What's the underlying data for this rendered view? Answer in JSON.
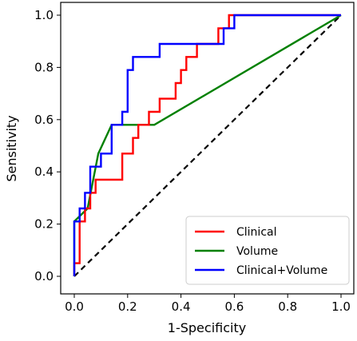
{
  "chart_data": {
    "type": "line",
    "title": "",
    "xlabel": "1-Specificity",
    "ylabel": "Sensitivity",
    "xlim": [
      0,
      1
    ],
    "ylim": [
      0,
      1
    ],
    "xticks": [
      "0.0",
      "0.2",
      "0.4",
      "0.6",
      "0.8",
      "1.0"
    ],
    "yticks": [
      "0.0",
      "0.2",
      "0.4",
      "0.6",
      "0.8",
      "1.0"
    ],
    "grid": false,
    "legend_position": "bottom-right",
    "series": [
      {
        "name": "Clinical",
        "color": "#ff0000",
        "style": "solid",
        "points": [
          [
            0.0,
            0.0
          ],
          [
            0.0,
            0.05
          ],
          [
            0.02,
            0.05
          ],
          [
            0.02,
            0.21
          ],
          [
            0.04,
            0.21
          ],
          [
            0.04,
            0.26
          ],
          [
            0.06,
            0.26
          ],
          [
            0.06,
            0.32
          ],
          [
            0.08,
            0.32
          ],
          [
            0.08,
            0.37
          ],
          [
            0.18,
            0.37
          ],
          [
            0.18,
            0.47
          ],
          [
            0.22,
            0.47
          ],
          [
            0.22,
            0.53
          ],
          [
            0.24,
            0.53
          ],
          [
            0.24,
            0.58
          ],
          [
            0.28,
            0.58
          ],
          [
            0.28,
            0.63
          ],
          [
            0.32,
            0.63
          ],
          [
            0.32,
            0.68
          ],
          [
            0.38,
            0.68
          ],
          [
            0.38,
            0.74
          ],
          [
            0.4,
            0.74
          ],
          [
            0.4,
            0.79
          ],
          [
            0.42,
            0.79
          ],
          [
            0.42,
            0.84
          ],
          [
            0.46,
            0.84
          ],
          [
            0.46,
            0.89
          ],
          [
            0.54,
            0.89
          ],
          [
            0.54,
            0.95
          ],
          [
            0.58,
            0.95
          ],
          [
            0.58,
            1.0
          ],
          [
            1.0,
            1.0
          ]
        ]
      },
      {
        "name": "Volume",
        "color": "#008000",
        "style": "solid",
        "points": [
          [
            0.0,
            0.0
          ],
          [
            0.0,
            0.21
          ],
          [
            0.05,
            0.26
          ],
          [
            0.09,
            0.47
          ],
          [
            0.14,
            0.58
          ],
          [
            0.3,
            0.58
          ],
          [
            1.0,
            1.0
          ]
        ]
      },
      {
        "name": "Clinical+Volume",
        "color": "#0000ff",
        "style": "solid",
        "points": [
          [
            0.0,
            0.0
          ],
          [
            0.0,
            0.21
          ],
          [
            0.02,
            0.21
          ],
          [
            0.02,
            0.26
          ],
          [
            0.04,
            0.26
          ],
          [
            0.04,
            0.32
          ],
          [
            0.06,
            0.32
          ],
          [
            0.06,
            0.42
          ],
          [
            0.1,
            0.42
          ],
          [
            0.1,
            0.47
          ],
          [
            0.14,
            0.47
          ],
          [
            0.14,
            0.58
          ],
          [
            0.18,
            0.58
          ],
          [
            0.18,
            0.63
          ],
          [
            0.2,
            0.63
          ],
          [
            0.2,
            0.79
          ],
          [
            0.22,
            0.79
          ],
          [
            0.22,
            0.84
          ],
          [
            0.32,
            0.84
          ],
          [
            0.32,
            0.89
          ],
          [
            0.56,
            0.89
          ],
          [
            0.56,
            0.95
          ],
          [
            0.6,
            0.95
          ],
          [
            0.6,
            1.0
          ],
          [
            1.0,
            1.0
          ]
        ]
      },
      {
        "name": "",
        "color": "#000000",
        "style": "dashed",
        "points": [
          [
            0.0,
            0.0
          ],
          [
            1.0,
            1.0
          ]
        ]
      }
    ]
  }
}
